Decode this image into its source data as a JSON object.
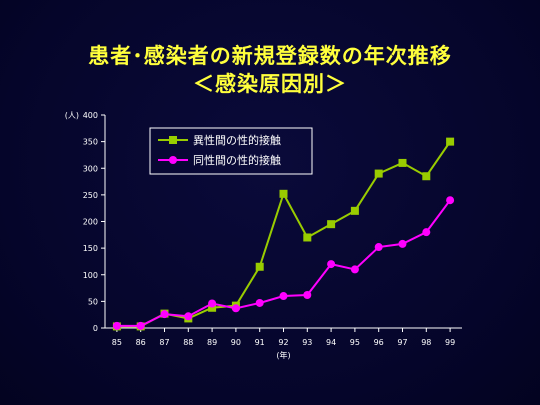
{
  "slide": {
    "title_line1": "患者･感染者の新規登録数の年次推移",
    "title_line2": "＜感染原因別＞"
  },
  "colors": {
    "background": "#05052a",
    "title": "#ffff3c",
    "series_hetero": "#99cc00",
    "series_homo": "#ff00ff",
    "axis": "#ffffff"
  },
  "chart_data": {
    "type": "line",
    "ylabel": "(人)",
    "xlabel": "(年)",
    "ylim": [
      0,
      400
    ],
    "yticks": [
      "0",
      "50",
      "100",
      "150",
      "200",
      "250",
      "300",
      "350",
      "400"
    ],
    "x": [
      "85",
      "86",
      "87",
      "88",
      "89",
      "90",
      "91",
      "92",
      "93",
      "94",
      "95",
      "96",
      "97",
      "98",
      "99"
    ],
    "series": [
      {
        "name": "異性間の性的接触",
        "marker": "square",
        "color": "#99cc00",
        "values": [
          3,
          3,
          27,
          18,
          38,
          42,
          115,
          252,
          170,
          195,
          220,
          290,
          310,
          285,
          350
        ]
      },
      {
        "name": "同性間の性的接触",
        "marker": "circle",
        "color": "#ff00ff",
        "values": [
          4,
          4,
          26,
          22,
          46,
          37,
          47,
          60,
          62,
          120,
          110,
          152,
          158,
          180,
          240
        ]
      }
    ],
    "grid": false,
    "legend": "top-left"
  }
}
